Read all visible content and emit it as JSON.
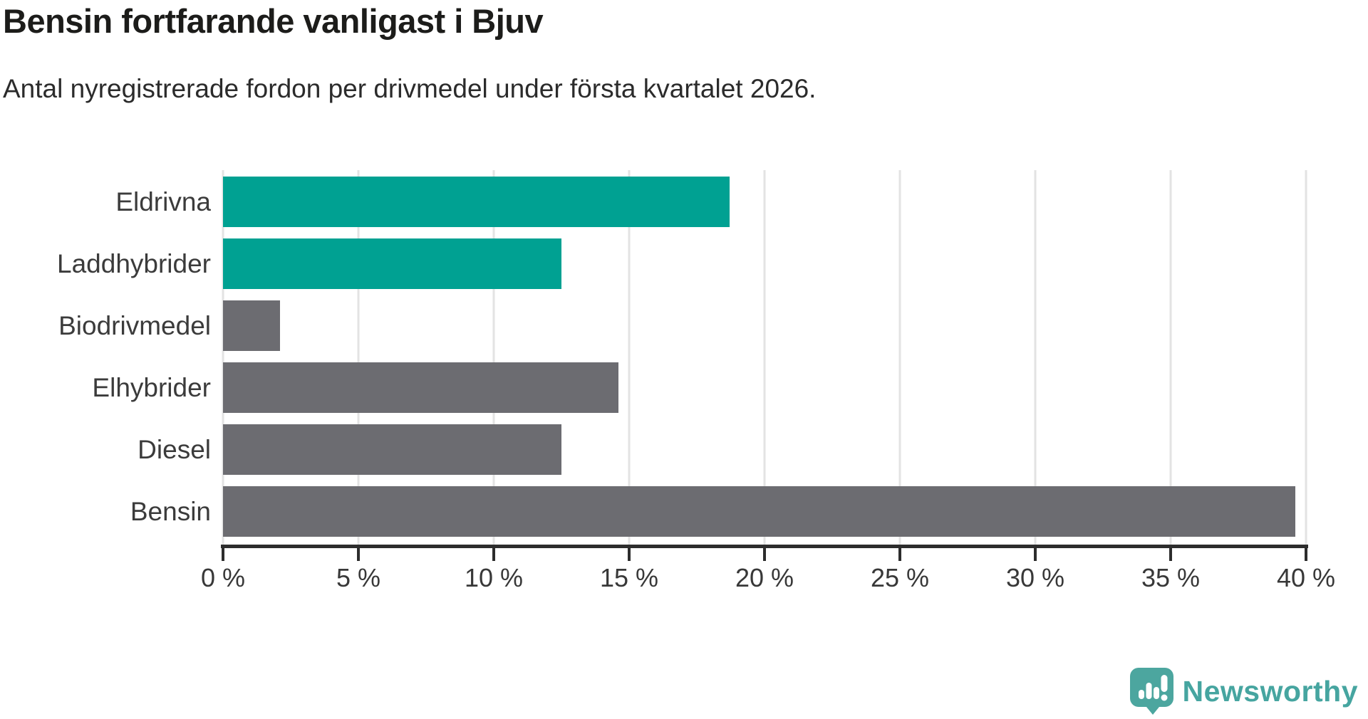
{
  "title": "Bensin fortfarande vanligast i Bjuv",
  "subtitle": "Antal nyregistrerade fordon per drivmedel under första kvartalet 2026.",
  "chart_data": {
    "type": "bar",
    "orientation": "horizontal",
    "title": "Bensin fortfarande vanligast i Bjuv",
    "subtitle": "Antal nyregistrerade fordon per drivmedel under första kvartalet 2026.",
    "categories": [
      "Eldrivna",
      "Laddhybrider",
      "Biodrivmedel",
      "Elhybrider",
      "Diesel",
      "Bensin"
    ],
    "values": [
      18.7,
      12.5,
      2.1,
      14.6,
      12.5,
      39.6
    ],
    "value_unit": "percent",
    "bar_colors": [
      "#00a192",
      "#00a192",
      "#6c6c71",
      "#6c6c71",
      "#6c6c71",
      "#6c6c71"
    ],
    "xlim": [
      0,
      40
    ],
    "x_tick_values": [
      0,
      5,
      10,
      15,
      20,
      25,
      30,
      35,
      40
    ],
    "x_tick_labels": [
      "0 %",
      "5 %",
      "10 %",
      "15 %",
      "20 %",
      "25 %",
      "30 %",
      "35 %",
      "40 %"
    ],
    "grid": "vertical",
    "legend": false
  },
  "branding": {
    "logo_text": "Newsworthy",
    "logo_icon": "newsworthy-bubble-chart-icon",
    "logo_text_color": "#46a5a0",
    "logo_icon_color": "#4ca69f"
  },
  "colors": {
    "highlight_bar": "#00a192",
    "default_bar": "#6c6c71",
    "axis": "#2d2d2d",
    "gridline": "#e3e3e3",
    "background": "#ffffff"
  }
}
